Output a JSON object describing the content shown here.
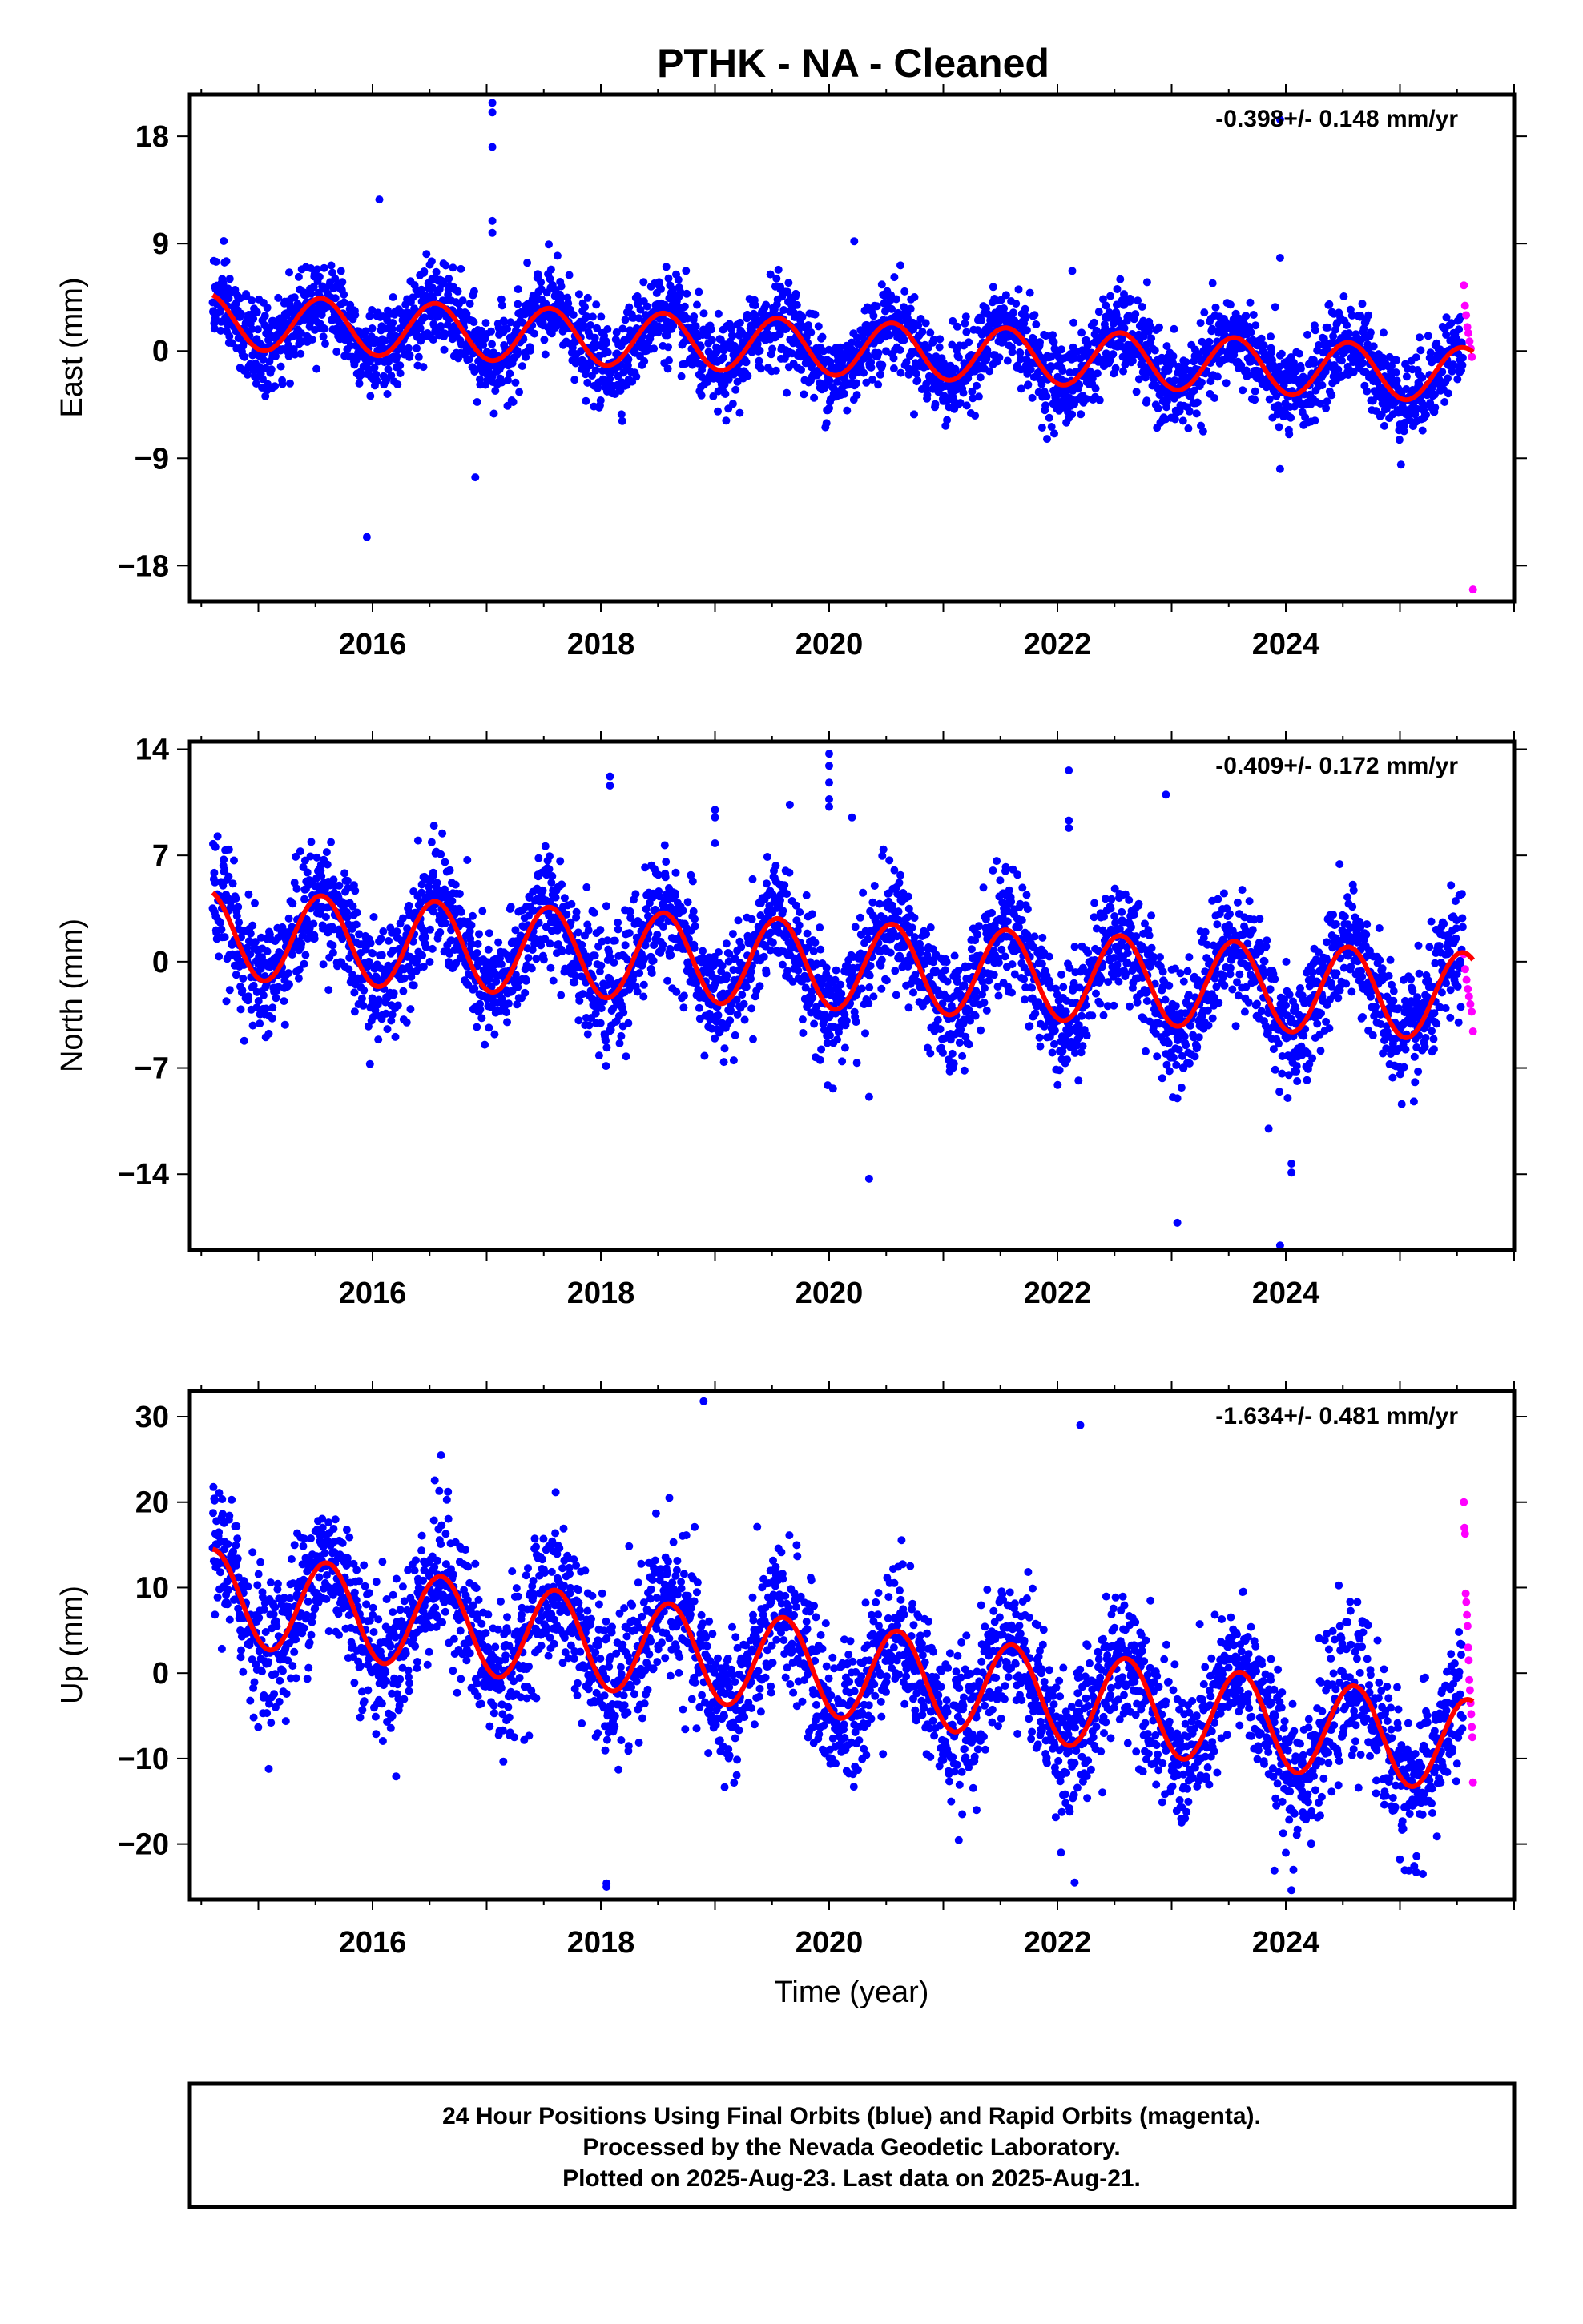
{
  "title": "PTHK  - NA - Cleaned",
  "caption": {
    "lines": [
      "24 Hour Positions Using Final Orbits (blue) and Rapid Orbits (magenta).",
      "Processed by the Nevada Geodetic Laboratory.",
      "Plotted on 2025-Aug-23. Last data on 2025-Aug-21."
    ]
  },
  "colors": {
    "final": "#0000ff",
    "rapid": "#ff00ff",
    "model": "#ff0000",
    "axes": "#000000"
  },
  "chart_data": [
    {
      "type": "scatter",
      "panel": "east",
      "ylabel": "East (mm)",
      "xlabel": "",
      "rate_label": "-0.398+/- 0.148 mm/yr",
      "xlim": [
        2014.4,
        2026.0
      ],
      "ylim": [
        -21,
        21.5
      ],
      "x_ticks": [
        2016,
        2018,
        2020,
        2022,
        2024
      ],
      "y_ticks": [
        -18,
        -9,
        0,
        9,
        18
      ],
      "y_tick_labels": [
        "−18",
        "−9",
        "0",
        "9",
        "18"
      ],
      "series": [
        {
          "role": "final",
          "x_range": [
            2014.6,
            2025.55
          ],
          "trend_start": 2.5,
          "trend_end": -2.0,
          "amplitude": 2.3,
          "phase_year": 2015.55,
          "noise": 1.8,
          "count": 3300
        },
        {
          "role": "rapid",
          "x_range": [
            2025.56,
            2025.64
          ],
          "values_y": [
            5.5,
            3.8,
            3.0,
            2.0,
            1.5,
            0.8,
            0.2,
            -0.5,
            -20.0
          ]
        },
        {
          "role": "model"
        }
      ],
      "outliers": [
        [
          2017.05,
          20.8
        ],
        [
          2017.05,
          20.0
        ],
        [
          2017.05,
          17.1
        ],
        [
          2017.05,
          10.9
        ],
        [
          2017.05,
          9.9
        ],
        [
          2016.06,
          12.7
        ],
        [
          2015.95,
          -15.6
        ],
        [
          2016.9,
          -10.6
        ],
        [
          2020.22,
          9.2
        ],
        [
          2022.13,
          6.7
        ],
        [
          2023.95,
          7.8
        ],
        [
          2023.95,
          -9.9
        ],
        [
          2023.95,
          19.4
        ]
      ]
    },
    {
      "type": "scatter",
      "panel": "north",
      "ylabel": "North (mm)",
      "xlabel": "",
      "rate_label": "-0.409+/- 0.172 mm/yr",
      "xlim": [
        2014.4,
        2026.0
      ],
      "ylim": [
        -19,
        14.5
      ],
      "x_ticks": [
        2016,
        2018,
        2020,
        2022,
        2024
      ],
      "y_ticks": [
        -14,
        -7,
        0,
        7,
        14
      ],
      "y_tick_labels": [
        "−14",
        "−7",
        "0",
        "7",
        "14"
      ],
      "series": [
        {
          "role": "final",
          "x_range": [
            2014.6,
            2025.55
          ],
          "trend_start": 1.8,
          "trend_end": -2.3,
          "amplitude": 2.9,
          "phase_year": 2015.55,
          "noise": 1.9,
          "count": 3300
        },
        {
          "role": "rapid",
          "x_range": [
            2025.56,
            2025.64
          ],
          "values_y": [
            0.5,
            -0.5,
            -1.2,
            -1.8,
            -2.3,
            -2.8,
            -3.3,
            -4.6
          ]
        },
        {
          "role": "model"
        }
      ],
      "outliers": [
        [
          2018.08,
          12.2
        ],
        [
          2018.08,
          11.6
        ],
        [
          2019.0,
          10.0
        ],
        [
          2019.0,
          9.5
        ],
        [
          2019.0,
          7.8
        ],
        [
          2020.0,
          13.7
        ],
        [
          2020.0,
          12.9
        ],
        [
          2020.0,
          11.8
        ],
        [
          2020.0,
          10.7
        ],
        [
          2020.0,
          10.2
        ],
        [
          2020.2,
          9.5
        ],
        [
          2020.35,
          -14.3
        ],
        [
          2020.35,
          -8.9
        ],
        [
          2022.1,
          12.6
        ],
        [
          2022.1,
          9.3
        ],
        [
          2022.1,
          8.8
        ],
        [
          2022.95,
          11.0
        ],
        [
          2023.05,
          -17.2
        ],
        [
          2023.05,
          -9.0
        ],
        [
          2023.85,
          -11.0
        ],
        [
          2023.95,
          -18.7
        ],
        [
          2024.05,
          -13.3
        ],
        [
          2024.05,
          -13.9
        ]
      ]
    },
    {
      "type": "scatter",
      "panel": "up",
      "ylabel": "Up (mm)",
      "xlabel": "Time (year)",
      "rate_label": "-1.634+/- 0.481 mm/yr",
      "xlim": [
        2014.4,
        2026.0
      ],
      "ylim": [
        -26.5,
        33
      ],
      "x_ticks": [
        2016,
        2018,
        2020,
        2022,
        2024
      ],
      "y_ticks": [
        -20,
        -10,
        0,
        10,
        20,
        30
      ],
      "y_tick_labels": [
        "−20",
        "−10",
        "0",
        "10",
        "20",
        "30"
      ],
      "series": [
        {
          "role": "final",
          "x_range": [
            2014.6,
            2025.55
          ],
          "trend_start": 9.0,
          "trend_end": -8.5,
          "amplitude": 5.5,
          "phase_year": 2015.6,
          "noise": 4.2,
          "count": 3300
        },
        {
          "role": "rapid",
          "x_range": [
            2025.56,
            2025.64
          ],
          "values_y": [
            20.0,
            17.0,
            16.3,
            9.3,
            8.3,
            6.8,
            5.5,
            3.0,
            1.5,
            -0.8,
            -2.0,
            -3.5,
            -4.8,
            -6.3,
            -7.5,
            -12.8
          ]
        },
        {
          "role": "model"
        }
      ],
      "outliers": [
        [
          2018.9,
          31.8
        ],
        [
          2022.2,
          29.0
        ],
        [
          2018.05,
          -24.6
        ],
        [
          2018.05,
          -25.0
        ],
        [
          2022.15,
          -24.5
        ],
        [
          2023.9,
          -23.1
        ],
        [
          2024.05,
          -25.4
        ],
        [
          2025.2,
          -23.5
        ],
        [
          2016.6,
          25.5
        ],
        [
          2018.6,
          20.5
        ]
      ]
    }
  ]
}
